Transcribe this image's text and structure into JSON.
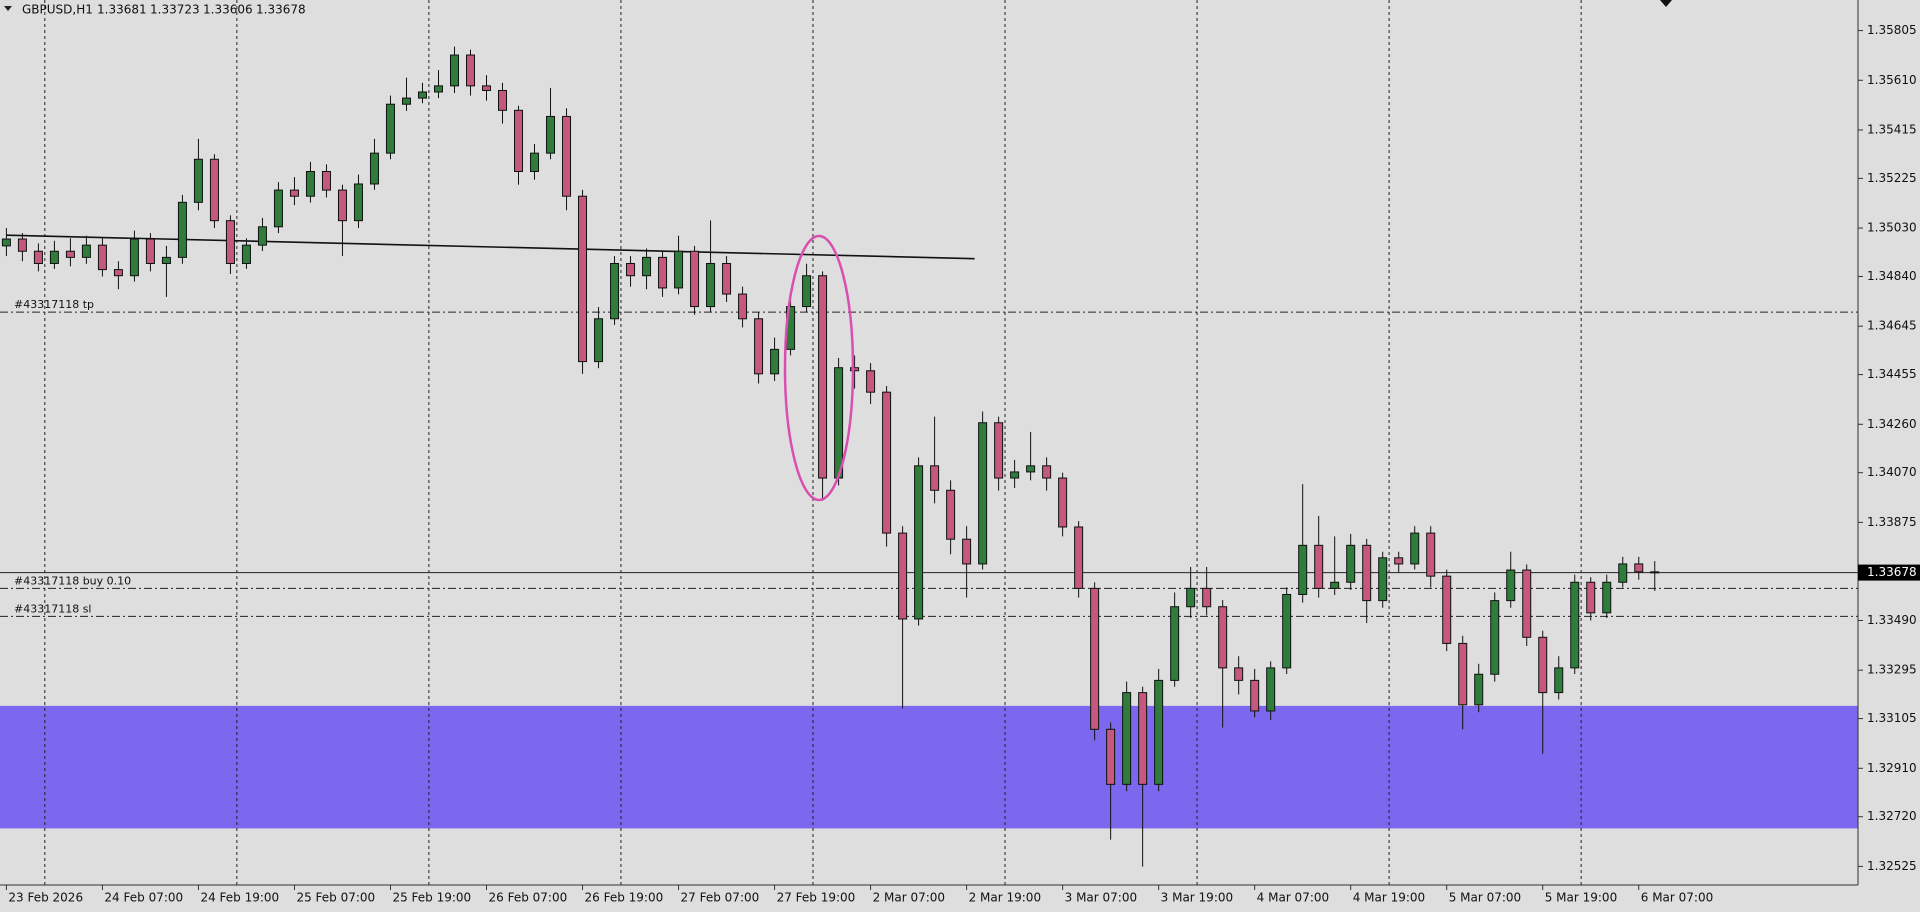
{
  "chart_data": {
    "type": "candlestick",
    "symbol": "GBPUSD,H1",
    "up_color": "#2f7d3b",
    "down_color": "#c4587e",
    "open": [
      1.3496,
      1.34987,
      1.34939,
      1.34891,
      1.34939,
      1.34915,
      1.34963,
      1.34867,
      1.34843,
      1.34987,
      1.34891,
      1.34915,
      1.35131,
      1.353,
      1.35059,
      1.34891,
      1.34963,
      1.35035,
      1.35179,
      1.35155,
      1.35252,
      1.35179,
      1.35059,
      1.35203,
      1.35324,
      1.35516,
      1.3554,
      1.35564,
      1.35588,
      1.35709,
      1.35588,
      1.3557,
      1.35492,
      1.35252,
      1.35324,
      1.35468,
      1.35155,
      1.34506,
      1.34674,
      1.34891,
      1.34843,
      1.34915,
      1.34795,
      1.34939,
      1.34722,
      1.34891,
      1.34771,
      1.34674,
      1.34458,
      1.34554,
      1.34722,
      1.34843,
      1.34049,
      1.34482,
      1.3447,
      1.34386,
      1.33833,
      1.33496,
      1.34097,
      1.34001,
      1.33809,
      1.33712,
      1.34266,
      1.34049,
      1.34073,
      1.34097,
      1.34049,
      1.33857,
      1.33616,
      1.33063,
      1.32847,
      1.33207,
      1.32847,
      1.33255,
      1.33544,
      1.33616,
      1.33544,
      1.33304,
      1.33255,
      1.33135,
      1.33304,
      1.33592,
      1.33785,
      1.33616,
      1.3364,
      1.33785,
      1.33568,
      1.33736,
      1.33712,
      1.33833,
      1.33664,
      1.334,
      1.33159,
      1.33279,
      1.33568,
      1.33688,
      1.33424,
      1.33207,
      1.33304,
      1.3364,
      1.3352,
      1.3364,
      1.33712,
      1.33681
    ],
    "high": [
      1.3503,
      1.3501,
      1.3497,
      1.3498,
      1.3499,
      1.35,
      1.3499,
      1.349,
      1.3502,
      1.3501,
      1.3496,
      1.3516,
      1.3538,
      1.3532,
      1.3508,
      1.3499,
      1.3507,
      1.3521,
      1.3523,
      1.3529,
      1.3528,
      1.352,
      1.3524,
      1.3538,
      1.3555,
      1.3562,
      1.356,
      1.3565,
      1.35742,
      1.3573,
      1.3563,
      1.356,
      1.3551,
      1.3536,
      1.3558,
      1.355,
      1.3518,
      1.3472,
      1.3492,
      1.3492,
      1.3495,
      1.3494,
      1.35,
      1.3496,
      1.3506,
      1.3492,
      1.348,
      1.347,
      1.346,
      1.3476,
      1.3489,
      1.3486,
      1.3452,
      1.3453,
      1.345,
      1.3441,
      1.3386,
      1.3413,
      1.3429,
      1.3404,
      1.3386,
      1.3431,
      1.3429,
      1.3412,
      1.3423,
      1.3413,
      1.3407,
      1.3388,
      1.3364,
      1.3309,
      1.3325,
      1.3323,
      1.333,
      1.336,
      1.337,
      1.337,
      1.3357,
      1.3335,
      1.333,
      1.3333,
      1.3362,
      1.34025,
      1.339,
      1.3382,
      1.3383,
      1.3381,
      1.3376,
      1.3376,
      1.3386,
      1.3386,
      1.3369,
      1.3343,
      1.3332,
      1.336,
      1.3376,
      1.3371,
      1.3345,
      1.3335,
      1.3367,
      1.3366,
      1.3367,
      1.3374,
      1.3374,
      1.33723
    ],
    "low": [
      1.3492,
      1.349,
      1.3486,
      1.3487,
      1.3488,
      1.3489,
      1.3484,
      1.3479,
      1.3482,
      1.3486,
      1.3476,
      1.3489,
      1.351,
      1.3503,
      1.3485,
      1.3487,
      1.3494,
      1.3501,
      1.3512,
      1.3513,
      1.3515,
      1.3492,
      1.3503,
      1.3518,
      1.353,
      1.3549,
      1.3552,
      1.3554,
      1.3556,
      1.3555,
      1.3553,
      1.3544,
      1.352,
      1.3522,
      1.353,
      1.351,
      1.34458,
      1.3448,
      1.3465,
      1.348,
      1.3479,
      1.3476,
      1.3477,
      1.3469,
      1.347,
      1.3474,
      1.3464,
      1.3442,
      1.3443,
      1.3453,
      1.347,
      1.3396,
      1.3402,
      1.344,
      1.3434,
      1.3378,
      1.33145,
      1.3347,
      1.3395,
      1.3375,
      1.3358,
      1.3369,
      1.34,
      1.3401,
      1.3404,
      1.34,
      1.3382,
      1.3358,
      1.3302,
      1.3263,
      1.3282,
      1.32524,
      1.3282,
      1.3323,
      1.335,
      1.3351,
      1.3307,
      1.332,
      1.3311,
      1.331,
      1.3328,
      1.3356,
      1.3358,
      1.3359,
      1.3361,
      1.3348,
      1.3354,
      1.3368,
      1.3369,
      1.3362,
      1.3337,
      1.33063,
      1.3313,
      1.3325,
      1.3354,
      1.3339,
      1.32967,
      1.3318,
      1.3328,
      1.3349,
      1.335,
      1.3362,
      1.3365,
      1.33606
    ],
    "close": [
      1.34987,
      1.34939,
      1.34891,
      1.34939,
      1.34915,
      1.34963,
      1.34867,
      1.34843,
      1.34987,
      1.34891,
      1.34915,
      1.35131,
      1.353,
      1.35059,
      1.34891,
      1.34963,
      1.35035,
      1.35179,
      1.35155,
      1.35252,
      1.35179,
      1.35059,
      1.35203,
      1.35324,
      1.35516,
      1.3554,
      1.35564,
      1.35588,
      1.35709,
      1.35588,
      1.3557,
      1.35492,
      1.35252,
      1.35324,
      1.35468,
      1.35155,
      1.34506,
      1.34674,
      1.34891,
      1.34843,
      1.34915,
      1.34795,
      1.34939,
      1.34722,
      1.34891,
      1.34771,
      1.34674,
      1.34458,
      1.34554,
      1.34722,
      1.34843,
      1.34049,
      1.34482,
      1.3447,
      1.34386,
      1.33833,
      1.33496,
      1.34097,
      1.34001,
      1.33809,
      1.33712,
      1.34266,
      1.34049,
      1.34073,
      1.34097,
      1.34049,
      1.33857,
      1.33616,
      1.33063,
      1.32847,
      1.33207,
      1.32847,
      1.33255,
      1.33544,
      1.33616,
      1.33544,
      1.33304,
      1.33255,
      1.33135,
      1.33304,
      1.33592,
      1.33785,
      1.33616,
      1.3364,
      1.33785,
      1.33568,
      1.33736,
      1.33712,
      1.33833,
      1.33664,
      1.334,
      1.33159,
      1.33279,
      1.33568,
      1.33688,
      1.33424,
      1.33207,
      1.33304,
      1.3364,
      1.3352,
      1.3364,
      1.33712,
      1.33681,
      1.33678
    ],
    "xlim": [
      -0.4,
      115.7
    ],
    "xticks": [
      {
        "value": 0,
        "label": "23 Feb 2026"
      },
      {
        "value": 6,
        "label": "24 Feb 07:00"
      },
      {
        "value": 12,
        "label": "24 Feb 19:00"
      },
      {
        "value": 18,
        "label": "25 Feb 07:00"
      },
      {
        "value": 24,
        "label": "25 Feb 19:00"
      },
      {
        "value": 30,
        "label": "26 Feb 07:00"
      },
      {
        "value": 36,
        "label": "26 Feb 19:00"
      },
      {
        "value": 42,
        "label": "27 Feb 07:00"
      },
      {
        "value": 48,
        "label": "27 Feb 19:00"
      },
      {
        "value": 54,
        "label": "2 Mar 07:00"
      },
      {
        "value": 60,
        "label": "2 Mar 19:00"
      },
      {
        "value": 66,
        "label": "3 Mar 07:00"
      },
      {
        "value": 72,
        "label": "3 Mar 19:00"
      },
      {
        "value": 78,
        "label": "4 Mar 07:00"
      },
      {
        "value": 84,
        "label": "4 Mar 19:00"
      },
      {
        "value": 90,
        "label": "5 Mar 07:00"
      },
      {
        "value": 96,
        "label": "5 Mar 19:00"
      },
      {
        "value": 102,
        "label": "6 Mar 07:00"
      }
    ],
    "ylim": [
      1.32452,
      1.35925
    ],
    "yticks": [
      1.35805,
      {
        "value": 1.3561,
        "label": "1.35610"
      },
      1.35415,
      1.35225,
      {
        "value": 1.3503,
        "label": "1.35030"
      },
      {
        "value": 1.3484,
        "label": "1.34840"
      },
      1.34645,
      1.34455,
      {
        "value": 1.3426,
        "label": "1.34260"
      },
      {
        "value": 1.3407,
        "label": "1.34070"
      },
      1.33875,
      {
        "value": 1.3349,
        "label": "1.33490"
      },
      1.33295,
      1.33105,
      {
        "value": 1.3291,
        "label": "1.32910"
      },
      {
        "value": 1.3272,
        "label": "1.32720"
      },
      1.32525
    ],
    "current_price": 1.33678,
    "levels": [
      {
        "label": "#43317118 tp",
        "price": 1.347
      },
      {
        "label": "#43317118 buy 0.10",
        "price": 1.33616
      },
      {
        "label": "#43317118 sl",
        "price": 1.33506
      }
    ],
    "zone": {
      "from": 1.32674,
      "to": 1.33155,
      "color": "#7b68ee"
    },
    "trendline": {
      "x": [
        0,
        60.5
      ],
      "y": [
        1.35002,
        1.3491
      ]
    }
  }
}
